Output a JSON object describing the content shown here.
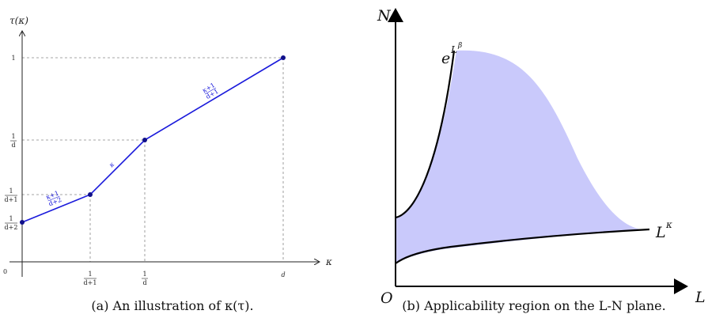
{
  "left_panel": {
    "y_axis_label": "τ(κ)",
    "x_axis_label": "κ",
    "origin_label": "0",
    "y_ticks": [
      {
        "num": "1",
        "den": "d+2",
        "value": 0.2
      },
      {
        "num": "1",
        "den": "d+1",
        "value": 0.333
      },
      {
        "num": "1",
        "den": "d",
        "value": 0.5
      },
      {
        "num": "1",
        "den": "",
        "value": 1
      }
    ],
    "x_ticks": [
      {
        "num": "1",
        "den": "d+1"
      },
      {
        "num": "1",
        "den": "d"
      },
      {
        "num": "d",
        "den": ""
      }
    ],
    "segment_labels": [
      {
        "num": "κ+1",
        "den": "d+2"
      },
      {
        "text": "κ"
      },
      {
        "num": "κ+1",
        "den": "d+1"
      }
    ],
    "caption": "(a) An illustration of κ(τ).",
    "line_color": "#1a1adb"
  },
  "right_panel": {
    "y_axis_label": "N",
    "x_axis_label": "L",
    "origin_label": "O",
    "upper_curve_base": "e",
    "upper_curve_exp": "L",
    "upper_curve_exp_sup": "β",
    "lower_curve_base": "L",
    "lower_curve_exp": "κ",
    "caption": "(b) Applicability region on the L-N plane.",
    "fill_color": "#c9c9fb"
  }
}
